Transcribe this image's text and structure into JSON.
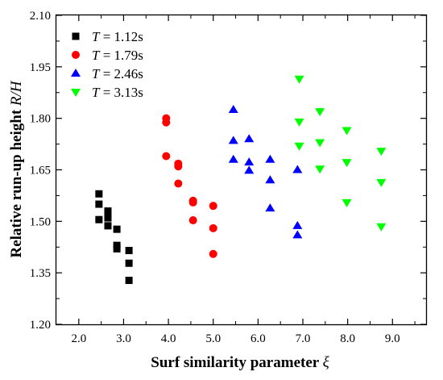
{
  "chart_data": {
    "type": "scatter",
    "xlabel": "Surf similarity  parameter ",
    "xlabel_symbol": "ξ",
    "ylabel": "Relative run-up height ",
    "ylabel_symbol": "R/H",
    "xlim": [
      1.5,
      9.75
    ],
    "ylim": [
      1.2,
      2.1
    ],
    "x_ticks": [
      "2.0",
      "3.0",
      "4.0",
      "5.0",
      "6.0",
      "7.0",
      "8.0",
      "9.0"
    ],
    "y_ticks": [
      "1.20",
      "1.35",
      "1.50",
      "1.65",
      "1.80",
      "1.95",
      "2.10"
    ],
    "legend_position": "top-left",
    "series": [
      {
        "name": "T = 1.12s",
        "name_var": "T",
        "name_rest": " = 1.12s",
        "marker": "square",
        "color": "#000000",
        "points": [
          [
            2.45,
            1.58
          ],
          [
            2.45,
            1.55
          ],
          [
            2.45,
            1.505
          ],
          [
            2.65,
            1.53
          ],
          [
            2.65,
            1.52
          ],
          [
            2.65,
            1.51
          ],
          [
            2.65,
            1.487
          ],
          [
            2.85,
            1.477
          ],
          [
            2.85,
            1.43
          ],
          [
            2.85,
            1.42
          ],
          [
            3.12,
            1.415
          ],
          [
            3.12,
            1.378
          ],
          [
            3.12,
            1.328
          ]
        ]
      },
      {
        "name": "T = 1.79s",
        "name_var": "T",
        "name_rest": " = 1.79s",
        "marker": "circle",
        "color": "#ff0000",
        "points": [
          [
            3.95,
            1.8
          ],
          [
            3.95,
            1.788
          ],
          [
            3.95,
            1.69
          ],
          [
            4.22,
            1.668
          ],
          [
            4.22,
            1.66
          ],
          [
            4.22,
            1.61
          ],
          [
            4.55,
            1.56
          ],
          [
            4.55,
            1.555
          ],
          [
            4.55,
            1.503
          ],
          [
            5.0,
            1.545
          ],
          [
            5.0,
            1.48
          ],
          [
            5.0,
            1.405
          ]
        ]
      },
      {
        "name": "T = 2.46s",
        "name_var": "T",
        "name_rest": " = 2.46s",
        "marker": "triangle-up",
        "color": "#0000ff",
        "points": [
          [
            5.45,
            1.825
          ],
          [
            5.45,
            1.735
          ],
          [
            5.45,
            1.68
          ],
          [
            5.8,
            1.74
          ],
          [
            5.8,
            1.672
          ],
          [
            5.8,
            1.648
          ],
          [
            6.27,
            1.68
          ],
          [
            6.27,
            1.62
          ],
          [
            6.27,
            1.538
          ],
          [
            6.88,
            1.65
          ],
          [
            6.88,
            1.487
          ],
          [
            6.88,
            1.46
          ]
        ]
      },
      {
        "name": "T = 3.13s",
        "name_var": "T",
        "name_rest": " = 3.13s",
        "marker": "triangle-down",
        "color": "#00ff00",
        "points": [
          [
            6.92,
            1.915
          ],
          [
            6.92,
            1.79
          ],
          [
            6.92,
            1.72
          ],
          [
            7.38,
            1.82
          ],
          [
            7.38,
            1.73
          ],
          [
            7.38,
            1.653
          ],
          [
            7.98,
            1.765
          ],
          [
            7.98,
            1.672
          ],
          [
            7.98,
            1.555
          ],
          [
            8.75,
            1.705
          ],
          [
            8.75,
            1.614
          ],
          [
            8.75,
            1.485
          ]
        ]
      }
    ]
  }
}
